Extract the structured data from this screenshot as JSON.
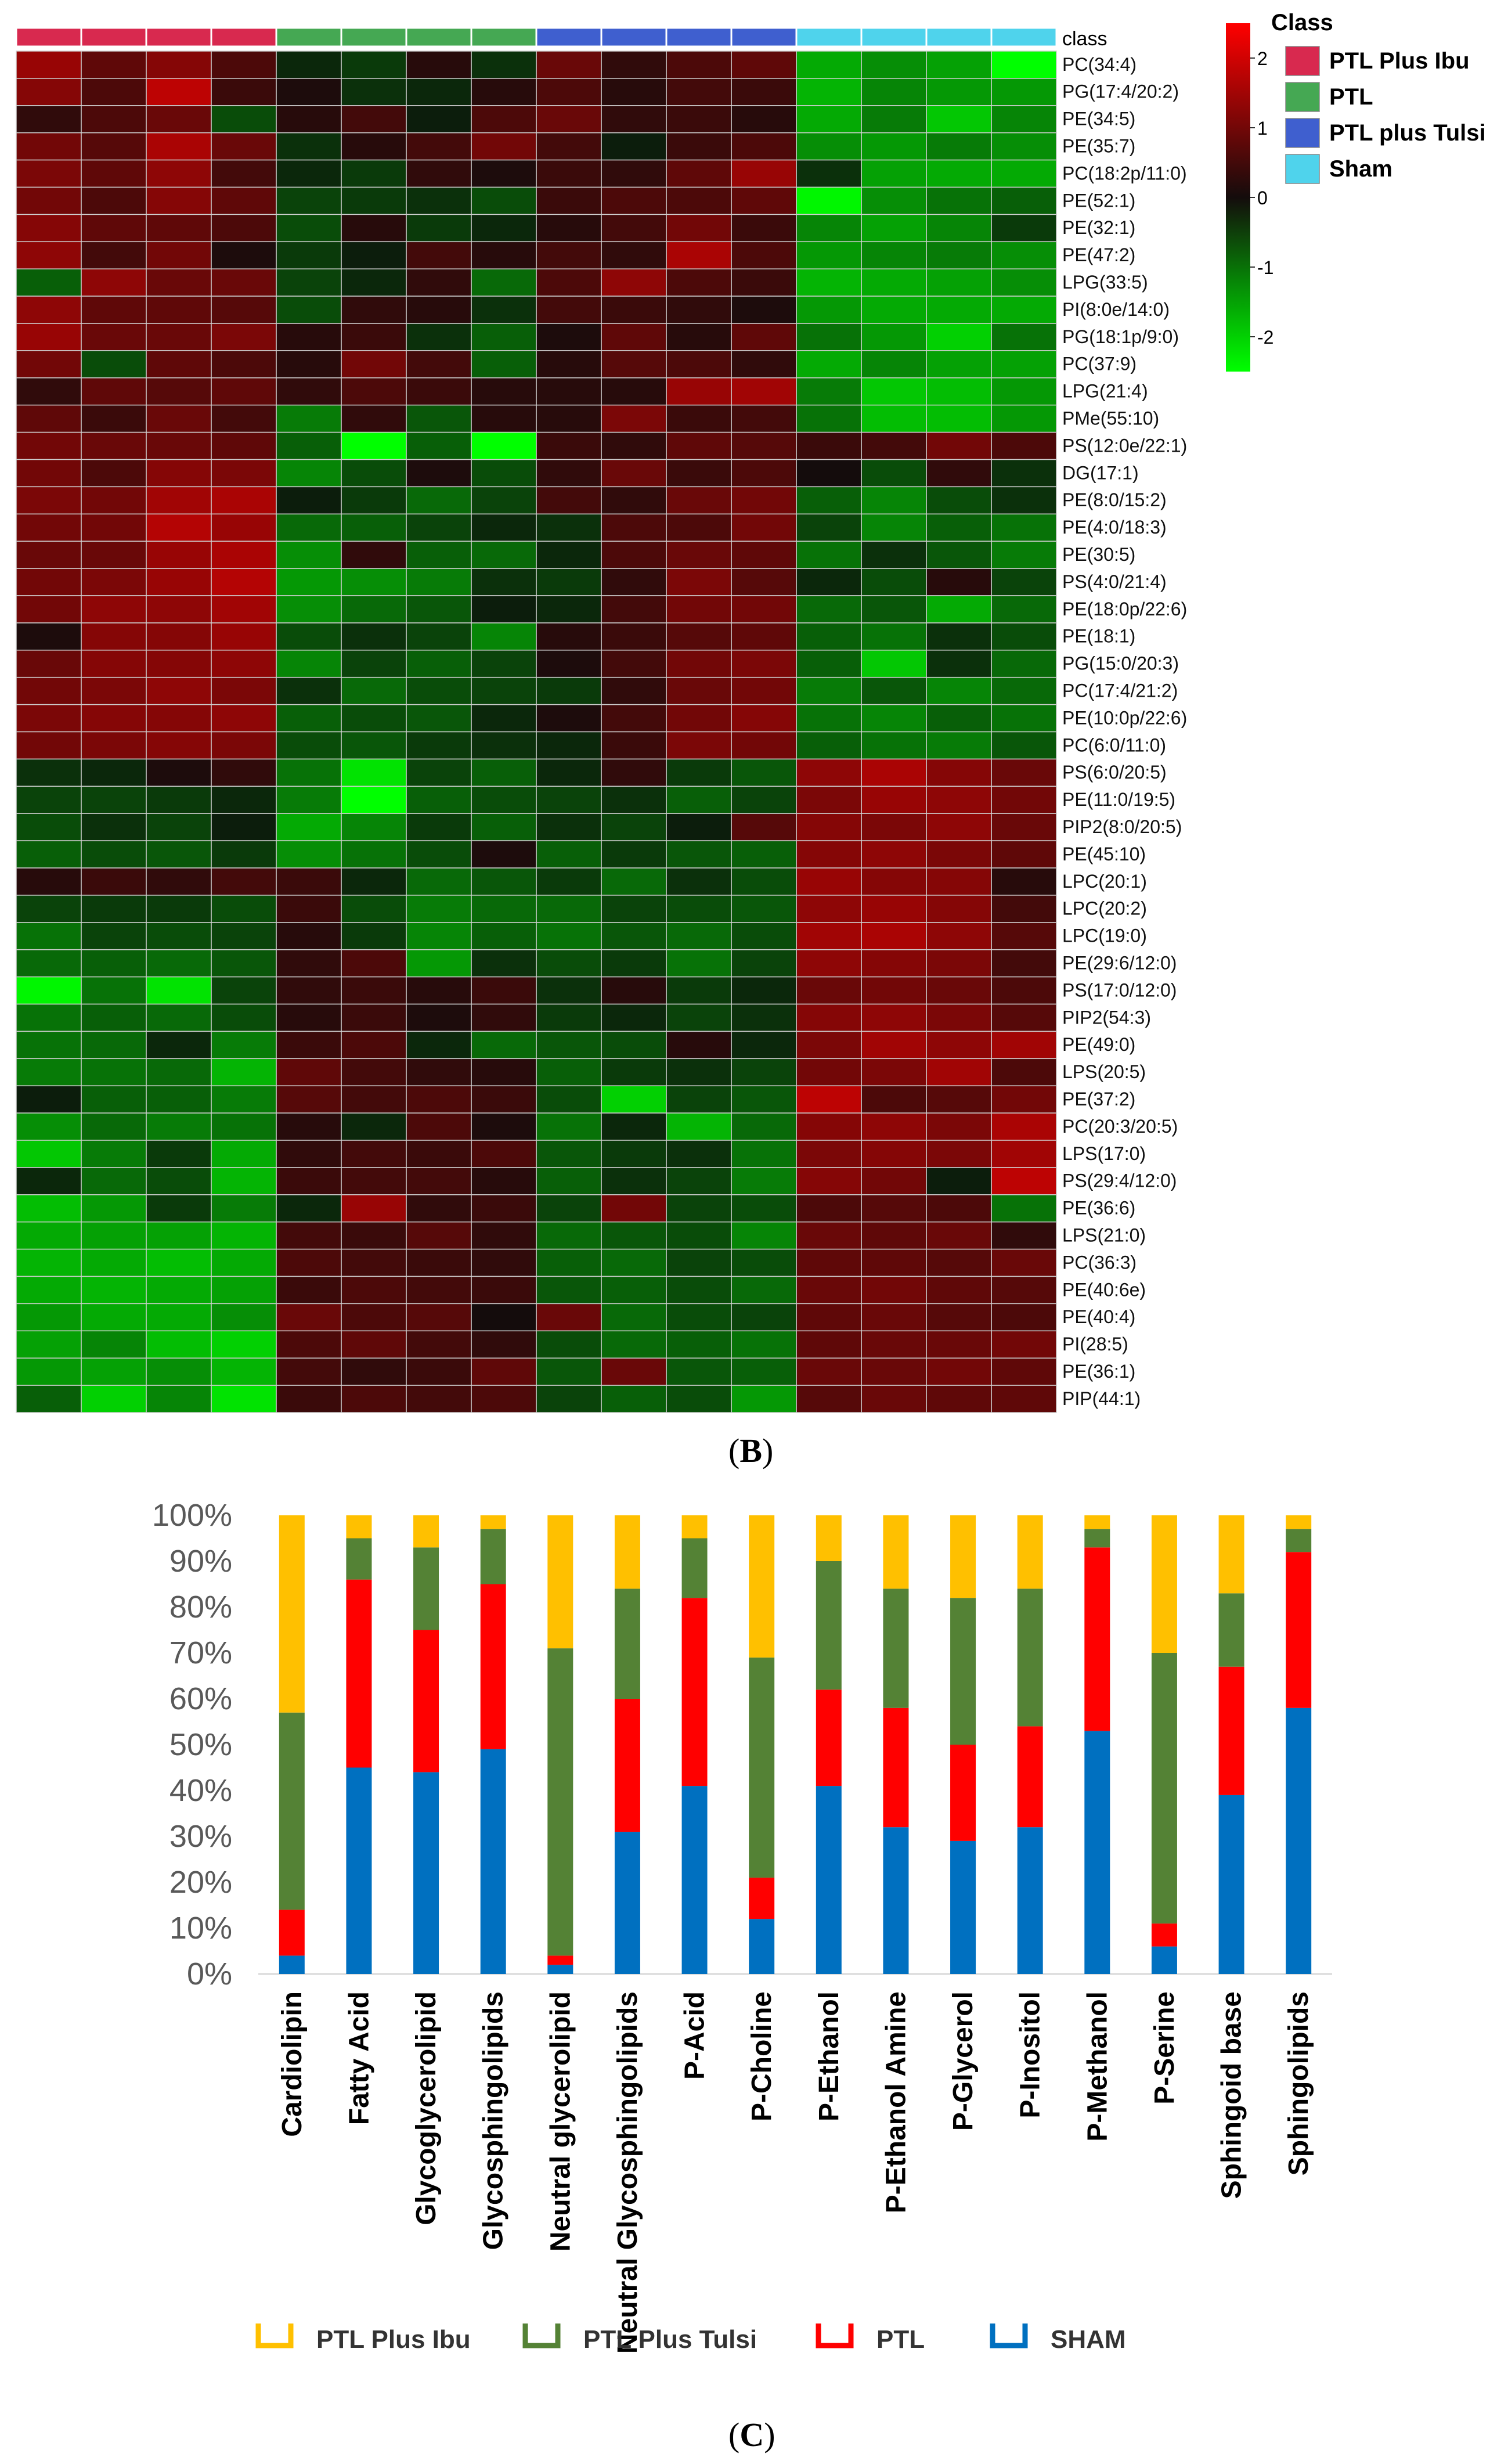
{
  "heatmap": {
    "label_top": "class",
    "legend_title": "Class",
    "class_legend": [
      {
        "name": "PTL Plus Ibu",
        "color": "#d8294f"
      },
      {
        "name": "PTL",
        "color": "#45a853"
      },
      {
        "name": "PTL plus Tulsi",
        "color": "#3f5fcf"
      },
      {
        "name": "Sham",
        "color": "#4fd3ec"
      }
    ],
    "sample_classes": [
      "PTL Plus Ibu",
      "PTL Plus Ibu",
      "PTL Plus Ibu",
      "PTL Plus Ibu",
      "PTL",
      "PTL",
      "PTL",
      "PTL",
      "PTL plus Tulsi",
      "PTL plus Tulsi",
      "PTL plus Tulsi",
      "PTL plus Tulsi",
      "Sham",
      "Sham",
      "Sham",
      "Sham"
    ],
    "scale_ticks": [
      "2",
      "1",
      "0",
      "-1",
      "-2"
    ],
    "scale_range": [
      -2.5,
      2.5
    ]
  },
  "chart_data": [
    {
      "type": "heatmap",
      "rows": [
        "PC(34:4)",
        "PG(17:4/20:2)",
        "PE(34:5)",
        "PE(35:7)",
        "PC(18:2p/11:0)",
        "PE(52:1)",
        "PE(32:1)",
        "PE(47:2)",
        "LPG(33:5)",
        "PI(8:0e/14:0)",
        "PG(18:1p/9:0)",
        "PC(37:9)",
        "LPG(21:4)",
        "PMe(55:10)",
        "PS(12:0e/22:1)",
        "DG(17:1)",
        "PE(8:0/15:2)",
        "PE(4:0/18:3)",
        "PE(30:5)",
        "PS(4:0/21:4)",
        "PE(18:0p/22:6)",
        "PE(18:1)",
        "PG(15:0/20:3)",
        "PC(17:4/21:2)",
        "PE(10:0p/22:6)",
        "PC(6:0/11:0)",
        "PS(6:0/20:5)",
        "PE(11:0/19:5)",
        "PIP2(8:0/20:5)",
        "PE(45:10)",
        "LPC(20:1)",
        "LPC(20:2)",
        "LPC(19:0)",
        "PE(29:6/12:0)",
        "PS(17:0/12:0)",
        "PIP2(54:3)",
        "PE(49:0)",
        "LPS(20:5)",
        "PE(37:2)",
        "PC(20:3/20:5)",
        "LPS(17:0)",
        "PS(29:4/12:0)",
        "PE(36:6)",
        "LPS(21:0)",
        "PC(36:3)",
        "PE(40:6e)",
        "PE(40:4)",
        "PI(28:5)",
        "PE(36:1)",
        "PIP(44:1)"
      ],
      "values": [
        [
          1.4,
          0.8,
          1.2,
          0.6,
          -0.2,
          -0.4,
          0.2,
          -0.3,
          0.9,
          0.3,
          0.6,
          0.8,
          -1.6,
          -1.3,
          -1.5,
          -2.6
        ],
        [
          1.2,
          0.6,
          1.8,
          0.4,
          0.1,
          -0.3,
          -0.2,
          0.2,
          0.6,
          0.2,
          0.5,
          0.4,
          -1.7,
          -1.2,
          -1.4,
          -1.4
        ],
        [
          0.3,
          0.6,
          0.9,
          -0.6,
          0.2,
          0.5,
          -0.1,
          0.6,
          0.9,
          0.3,
          0.4,
          0.2,
          -1.6,
          -1.1,
          -1.9,
          -1.2
        ],
        [
          1.0,
          0.7,
          1.6,
          0.9,
          -0.3,
          0.2,
          0.5,
          1.0,
          0.5,
          -0.1,
          0.4,
          0.6,
          -1.3,
          -1.4,
          -1.1,
          -1.3
        ],
        [
          1.1,
          0.8,
          1.3,
          0.5,
          -0.2,
          -0.4,
          0.3,
          0.1,
          0.4,
          0.3,
          0.8,
          1.4,
          -0.3,
          -1.5,
          -1.6,
          -1.6
        ],
        [
          1.0,
          0.6,
          1.2,
          0.8,
          -0.5,
          -0.4,
          -0.3,
          -0.6,
          0.4,
          0.6,
          0.6,
          0.8,
          -2.4,
          -1.3,
          -1.0,
          -0.8
        ],
        [
          1.2,
          0.8,
          0.8,
          0.6,
          -0.6,
          0.2,
          -0.4,
          -0.2,
          0.2,
          0.5,
          1.0,
          0.4,
          -1.2,
          -1.5,
          -1.2,
          -0.4
        ],
        [
          1.3,
          0.5,
          1.0,
          0.1,
          -0.4,
          -0.1,
          0.5,
          0.2,
          0.5,
          0.3,
          1.6,
          0.6,
          -1.4,
          -1.2,
          -1.1,
          -1.3
        ],
        [
          -0.8,
          1.3,
          0.9,
          0.9,
          -0.5,
          -0.2,
          0.3,
          -0.9,
          0.6,
          1.3,
          0.6,
          0.4,
          -1.7,
          -1.6,
          -1.5,
          -1.3
        ],
        [
          1.3,
          0.8,
          0.8,
          0.7,
          -0.6,
          0.3,
          0.2,
          -0.3,
          0.5,
          0.4,
          0.3,
          0.1,
          -1.4,
          -1.6,
          -1.6,
          -1.6
        ],
        [
          1.4,
          0.9,
          0.9,
          1.1,
          0.2,
          0.4,
          -0.3,
          -0.8,
          0.1,
          0.8,
          0.2,
          0.8,
          -1.0,
          -1.4,
          -2.0,
          -1.0
        ],
        [
          1.0,
          -0.6,
          0.8,
          0.6,
          0.2,
          1.0,
          0.5,
          -0.8,
          0.2,
          0.7,
          0.6,
          0.3,
          -1.6,
          -1.2,
          -1.5,
          -1.5
        ],
        [
          0.3,
          0.8,
          0.7,
          0.8,
          0.3,
          0.6,
          0.4,
          0.2,
          0.2,
          0.2,
          1.4,
          1.5,
          -1.1,
          -1.9,
          -1.8,
          -1.4
        ],
        [
          0.8,
          0.4,
          0.9,
          0.5,
          -1.1,
          0.3,
          -0.7,
          0.2,
          0.2,
          1.1,
          0.4,
          0.5,
          -1.0,
          -1.8,
          -1.8,
          -1.4
        ],
        [
          1.0,
          0.9,
          0.9,
          0.8,
          -0.8,
          -2.6,
          -0.8,
          -2.5,
          0.4,
          0.3,
          0.8,
          0.7,
          0.4,
          0.5,
          1.0,
          0.6
        ],
        [
          1.0,
          0.6,
          1.2,
          1.1,
          -1.2,
          -0.6,
          0.1,
          -0.6,
          0.3,
          0.9,
          0.4,
          0.6,
          0.0,
          -0.6,
          0.3,
          -0.3
        ],
        [
          1.1,
          1.0,
          1.5,
          1.6,
          -0.1,
          -0.4,
          -0.9,
          -0.5,
          0.5,
          0.3,
          0.9,
          1.0,
          -0.8,
          -1.2,
          -0.6,
          -0.3
        ],
        [
          1.0,
          1.0,
          1.7,
          1.4,
          -0.9,
          -0.8,
          -0.5,
          -0.2,
          -0.3,
          0.6,
          0.6,
          1.0,
          -0.5,
          -1.2,
          -0.8,
          -1.0
        ],
        [
          0.9,
          0.9,
          1.4,
          1.6,
          -1.3,
          0.3,
          -0.8,
          -0.9,
          -0.2,
          0.6,
          0.9,
          0.8,
          -1.0,
          -0.3,
          -0.7,
          -1.1
        ],
        [
          1.0,
          1.1,
          1.4,
          1.7,
          -1.4,
          -1.3,
          -1.1,
          -0.3,
          -0.4,
          0.3,
          1.1,
          0.7,
          -0.2,
          -0.6,
          0.2,
          -0.5
        ],
        [
          1.0,
          1.3,
          1.3,
          1.5,
          -1.3,
          -0.9,
          -0.7,
          -0.1,
          -0.2,
          0.5,
          1.0,
          1.0,
          -0.9,
          -0.7,
          -1.6,
          -0.9
        ],
        [
          0.1,
          1.2,
          1.2,
          1.4,
          -0.6,
          -0.3,
          -0.5,
          -1.2,
          0.2,
          0.4,
          0.7,
          0.8,
          -0.8,
          -1.0,
          -0.3,
          -0.6
        ],
        [
          0.9,
          1.2,
          1.2,
          1.3,
          -1.2,
          -0.5,
          -0.8,
          -0.5,
          0.1,
          0.5,
          1.0,
          1.1,
          -0.8,
          -1.9,
          -0.3,
          -0.9
        ],
        [
          1.0,
          1.1,
          1.3,
          1.1,
          -0.3,
          -0.9,
          -0.6,
          -0.5,
          -0.4,
          0.3,
          0.9,
          1.0,
          -1.1,
          -0.7,
          -1.2,
          -0.9
        ],
        [
          1.1,
          1.2,
          1.2,
          1.3,
          -0.8,
          -0.6,
          -0.7,
          -0.2,
          0.1,
          0.5,
          1.0,
          1.2,
          -1.0,
          -1.2,
          -0.8,
          -1.0
        ],
        [
          1.0,
          1.1,
          1.2,
          1.1,
          -0.6,
          -0.7,
          -0.4,
          -0.3,
          -0.2,
          0.4,
          1.1,
          1.0,
          -0.8,
          -1.0,
          -1.1,
          -0.7
        ],
        [
          -0.3,
          -0.2,
          0.1,
          0.3,
          -1.0,
          -2.2,
          -0.5,
          -0.8,
          -0.2,
          0.3,
          -0.4,
          -0.7,
          1.3,
          1.6,
          1.2,
          0.9
        ],
        [
          -0.5,
          -0.5,
          -0.4,
          -0.2,
          -1.1,
          -2.8,
          -0.8,
          -0.6,
          -0.5,
          -0.3,
          -0.8,
          -0.5,
          1.1,
          1.4,
          1.3,
          1.0
        ],
        [
          -0.6,
          -0.3,
          -0.5,
          -0.1,
          -1.6,
          -1.2,
          -0.4,
          -0.8,
          -0.3,
          -0.5,
          -0.1,
          0.7,
          1.2,
          1.1,
          1.3,
          0.9
        ],
        [
          -0.8,
          -0.6,
          -0.7,
          -0.4,
          -1.3,
          -1.0,
          -0.6,
          0.1,
          -0.8,
          -0.4,
          -0.7,
          -0.8,
          1.2,
          1.3,
          1.1,
          0.8
        ],
        [
          0.2,
          0.4,
          0.3,
          0.5,
          0.4,
          -0.2,
          -0.9,
          -0.7,
          -0.4,
          -0.9,
          -0.3,
          -0.6,
          1.4,
          1.2,
          1.2,
          0.2
        ],
        [
          -0.5,
          -0.4,
          -0.4,
          -0.6,
          0.4,
          -0.6,
          -1.1,
          -0.9,
          -0.9,
          -0.5,
          -0.6,
          -0.7,
          1.3,
          1.4,
          1.2,
          0.5
        ],
        [
          -1.0,
          -0.5,
          -0.6,
          -0.5,
          0.2,
          -0.4,
          -1.2,
          -0.8,
          -1.0,
          -0.7,
          -0.9,
          -0.6,
          1.5,
          1.6,
          1.3,
          0.7
        ],
        [
          -0.9,
          -0.8,
          -0.9,
          -0.7,
          0.3,
          0.6,
          -1.4,
          -0.3,
          -0.6,
          -0.4,
          -1.0,
          -0.5,
          1.3,
          1.2,
          1.1,
          0.5
        ],
        [
          -2.4,
          -1.0,
          -2.2,
          -0.5,
          0.3,
          0.4,
          0.2,
          0.4,
          -0.3,
          0.2,
          -0.4,
          -0.2,
          0.9,
          1.0,
          0.9,
          0.6
        ],
        [
          -1.0,
          -0.8,
          -0.9,
          -0.6,
          0.2,
          0.4,
          0.1,
          0.3,
          -0.4,
          -0.2,
          -0.5,
          -0.3,
          1.2,
          1.3,
          1.1,
          0.7
        ],
        [
          -1.0,
          -0.9,
          -0.2,
          -1.1,
          0.4,
          0.6,
          -0.2,
          -0.9,
          -0.7,
          -0.6,
          0.2,
          -0.2,
          1.1,
          1.5,
          1.3,
          1.5
        ],
        [
          -1.1,
          -1.0,
          -0.9,
          -1.7,
          0.8,
          0.5,
          0.3,
          0.2,
          -0.8,
          -0.4,
          -0.3,
          -0.5,
          1.0,
          1.1,
          1.5,
          0.6
        ],
        [
          -0.1,
          -0.8,
          -0.8,
          -1.1,
          0.7,
          0.5,
          0.6,
          0.4,
          -0.6,
          -2.0,
          -0.5,
          -0.7,
          1.8,
          0.6,
          0.7,
          1.0
        ],
        [
          -1.3,
          -0.9,
          -1.1,
          -1.0,
          0.2,
          -0.2,
          0.6,
          0.1,
          -1.0,
          -0.2,
          -1.7,
          -0.9,
          1.2,
          1.3,
          1.1,
          1.6
        ],
        [
          -1.9,
          -1.1,
          -0.4,
          -1.6,
          0.3,
          0.5,
          0.4,
          0.6,
          -0.7,
          -0.4,
          -0.3,
          -1.0,
          1.1,
          1.2,
          1.1,
          1.5
        ],
        [
          -0.2,
          -0.9,
          -0.6,
          -1.7,
          0.4,
          0.5,
          0.5,
          0.2,
          -0.8,
          -0.3,
          -0.5,
          -1.1,
          1.2,
          1.0,
          -0.1,
          1.8
        ],
        [
          -1.8,
          -1.4,
          -0.4,
          -1.1,
          -0.2,
          1.4,
          0.3,
          0.4,
          -0.5,
          1.0,
          -0.5,
          -0.6,
          0.6,
          0.7,
          0.6,
          -1.0
        ],
        [
          -1.6,
          -1.5,
          -1.5,
          -1.7,
          0.5,
          0.4,
          0.7,
          0.3,
          -0.9,
          -0.7,
          -0.6,
          -1.2,
          0.9,
          0.8,
          0.9,
          0.3
        ],
        [
          -1.7,
          -1.6,
          -1.8,
          -1.6,
          0.6,
          0.5,
          0.4,
          0.3,
          -0.8,
          -0.9,
          -0.5,
          -0.6,
          0.8,
          0.8,
          0.7,
          0.9
        ],
        [
          -1.6,
          -1.7,
          -1.6,
          -1.5,
          0.4,
          0.6,
          0.5,
          0.4,
          -0.7,
          -0.8,
          -0.6,
          -0.9,
          0.9,
          1.0,
          0.8,
          0.7
        ],
        [
          -1.4,
          -1.6,
          -1.6,
          -1.3,
          0.9,
          0.6,
          0.7,
          0.0,
          0.9,
          -0.9,
          -0.6,
          -0.5,
          0.8,
          0.9,
          0.7,
          0.6
        ],
        [
          -1.5,
          -1.2,
          -1.8,
          -2.0,
          0.6,
          0.8,
          0.5,
          0.3,
          -0.6,
          -0.9,
          -0.8,
          -1.0,
          0.8,
          0.9,
          0.9,
          1.0
        ],
        [
          -1.4,
          -1.5,
          -1.3,
          -1.7,
          0.5,
          0.3,
          0.4,
          0.8,
          -0.7,
          0.9,
          -0.7,
          -0.8,
          0.9,
          0.9,
          1.0,
          0.8
        ],
        [
          -0.8,
          -2.0,
          -1.2,
          -2.2,
          0.4,
          0.6,
          0.5,
          0.6,
          -0.5,
          -0.8,
          -0.6,
          -1.4,
          0.7,
          0.9,
          0.8,
          0.8
        ]
      ]
    },
    {
      "type": "bar",
      "stacked": true,
      "percent": true,
      "categories": [
        "Cardiolipin",
        "Fatty Acid",
        "Glycoglycerolipid",
        "Glycosphingolipids",
        "Neutral glycerolipid",
        "Neutral Glycosphingolipids",
        "P-Acid",
        "P-Choline",
        "P-Ethanol",
        "P-Ethanol Amine",
        "P-Glycerol",
        "P-Inositol",
        "P-Methanol",
        "P-Serine",
        "Sphingoid base",
        "Sphingolipids"
      ],
      "series": [
        {
          "name": "SHAM",
          "color": "#0070c0",
          "values": [
            4,
            45,
            44,
            49,
            2,
            31,
            41,
            12,
            41,
            32,
            29,
            32,
            53,
            6,
            39,
            58
          ]
        },
        {
          "name": "PTL",
          "color": "#ff0000",
          "values": [
            10,
            41,
            31,
            36,
            2,
            29,
            41,
            9,
            21,
            26,
            21,
            22,
            40,
            5,
            28,
            34
          ]
        },
        {
          "name": "PTL Plus Tulsi",
          "color": "#548235",
          "values": [
            43,
            9,
            18,
            12,
            67,
            24,
            13,
            48,
            28,
            26,
            32,
            30,
            4,
            59,
            16,
            5
          ]
        },
        {
          "name": "PTL Plus Ibu",
          "color": "#ffc000",
          "values": [
            43,
            5,
            7,
            3,
            29,
            16,
            5,
            31,
            10,
            16,
            18,
            16,
            3,
            30,
            17,
            3
          ]
        }
      ],
      "legend_order": [
        "PTL Plus Ibu",
        "PTL Plus Tulsi",
        "PTL",
        "SHAM"
      ],
      "yticks": [
        "0%",
        "10%",
        "20%",
        "30%",
        "40%",
        "50%",
        "60%",
        "70%",
        "80%",
        "90%",
        "100%"
      ],
      "ylim": [
        0,
        100
      ]
    }
  ],
  "labels": {
    "panel_b": "B",
    "panel_c": "C"
  }
}
